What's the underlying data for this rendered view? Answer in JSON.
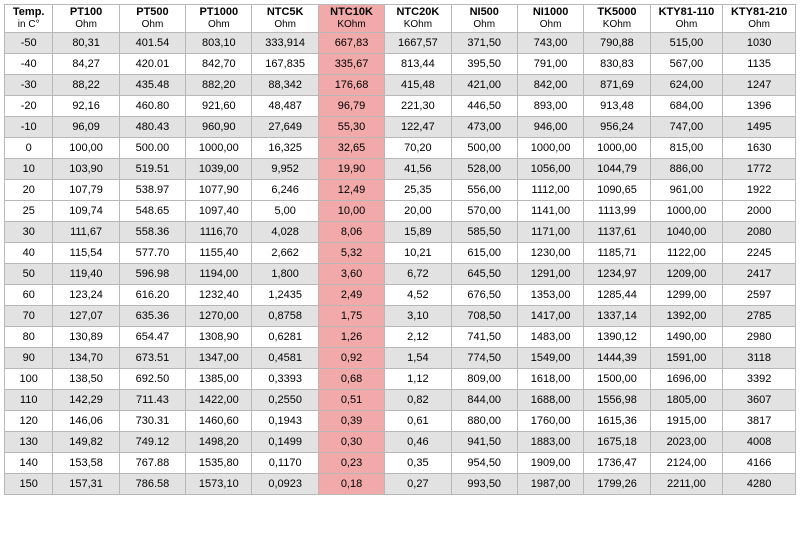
{
  "columns": [
    {
      "label": "Temp.",
      "unit": "in C°"
    },
    {
      "label": "PT100",
      "unit": "Ohm"
    },
    {
      "label": "PT500",
      "unit": "Ohm"
    },
    {
      "label": "PT1000",
      "unit": "Ohm"
    },
    {
      "label": "NTC5K",
      "unit": "Ohm"
    },
    {
      "label": "NTC10K",
      "unit": "KOhm"
    },
    {
      "label": "NTC20K",
      "unit": "KOhm"
    },
    {
      "label": "NI500",
      "unit": "Ohm"
    },
    {
      "label": "NI1000",
      "unit": "Ohm"
    },
    {
      "label": "TK5000",
      "unit": "KOhm"
    },
    {
      "label": "KTY81-110",
      "unit": "Ohm"
    },
    {
      "label": "KTY81-210",
      "unit": "Ohm"
    }
  ],
  "highlight_column_index": 5,
  "shaded_row_indices": [
    0,
    2,
    4,
    6,
    9,
    11,
    13,
    15,
    17,
    19,
    21
  ],
  "rows": [
    [
      "-50",
      "80,31",
      "401.54",
      "803,10",
      "333,914",
      "667,83",
      "1667,57",
      "371,50",
      "743,00",
      "790,88",
      "515,00",
      "1030"
    ],
    [
      "-40",
      "84,27",
      "420.01",
      "842,70",
      "167,835",
      "335,67",
      "813,44",
      "395,50",
      "791,00",
      "830,83",
      "567,00",
      "1135"
    ],
    [
      "-30",
      "88,22",
      "435.48",
      "882,20",
      "88,342",
      "176,68",
      "415,48",
      "421,00",
      "842,00",
      "871,69",
      "624,00",
      "1247"
    ],
    [
      "-20",
      "92,16",
      "460.80",
      "921,60",
      "48,487",
      "96,79",
      "221,30",
      "446,50",
      "893,00",
      "913,48",
      "684,00",
      "1396"
    ],
    [
      "-10",
      "96,09",
      "480.43",
      "960,90",
      "27,649",
      "55,30",
      "122,47",
      "473,00",
      "946,00",
      "956,24",
      "747,00",
      "1495"
    ],
    [
      "0",
      "100,00",
      "500.00",
      "1000,00",
      "16,325",
      "32,65",
      "70,20",
      "500,00",
      "1000,00",
      "1000,00",
      "815,00",
      "1630"
    ],
    [
      "10",
      "103,90",
      "519.51",
      "1039,00",
      "9,952",
      "19,90",
      "41,56",
      "528,00",
      "1056,00",
      "1044,79",
      "886,00",
      "1772"
    ],
    [
      "20",
      "107,79",
      "538.97",
      "1077,90",
      "6,246",
      "12,49",
      "25,35",
      "556,00",
      "1112,00",
      "1090,65",
      "961,00",
      "1922"
    ],
    [
      "25",
      "109,74",
      "548.65",
      "1097,40",
      "5,00",
      "10,00",
      "20,00",
      "570,00",
      "1141,00",
      "1113,99",
      "1000,00",
      "2000"
    ],
    [
      "30",
      "111,67",
      "558.36",
      "1116,70",
      "4,028",
      "8,06",
      "15,89",
      "585,50",
      "1171,00",
      "1137,61",
      "1040,00",
      "2080"
    ],
    [
      "40",
      "115,54",
      "577.70",
      "1155,40",
      "2,662",
      "5,32",
      "10,21",
      "615,00",
      "1230,00",
      "1185,71",
      "1122,00",
      "2245"
    ],
    [
      "50",
      "119,40",
      "596.98",
      "1194,00",
      "1,800",
      "3,60",
      "6,72",
      "645,50",
      "1291,00",
      "1234,97",
      "1209,00",
      "2417"
    ],
    [
      "60",
      "123,24",
      "616.20",
      "1232,40",
      "1,2435",
      "2,49",
      "4,52",
      "676,50",
      "1353,00",
      "1285,44",
      "1299,00",
      "2597"
    ],
    [
      "70",
      "127,07",
      "635.36",
      "1270,00",
      "0,8758",
      "1,75",
      "3,10",
      "708,50",
      "1417,00",
      "1337,14",
      "1392,00",
      "2785"
    ],
    [
      "80",
      "130,89",
      "654.47",
      "1308,90",
      "0,6281",
      "1,26",
      "2,12",
      "741,50",
      "1483,00",
      "1390,12",
      "1490,00",
      "2980"
    ],
    [
      "90",
      "134,70",
      "673.51",
      "1347,00",
      "0,4581",
      "0,92",
      "1,54",
      "774,50",
      "1549,00",
      "1444,39",
      "1591,00",
      "3118"
    ],
    [
      "100",
      "138,50",
      "692.50",
      "1385,00",
      "0,3393",
      "0,68",
      "1,12",
      "809,00",
      "1618,00",
      "1500,00",
      "1696,00",
      "3392"
    ],
    [
      "110",
      "142,29",
      "711.43",
      "1422,00",
      "0,2550",
      "0,51",
      "0,82",
      "844,00",
      "1688,00",
      "1556,98",
      "1805,00",
      "3607"
    ],
    [
      "120",
      "146,06",
      "730.31",
      "1460,60",
      "0,1943",
      "0,39",
      "0,61",
      "880,00",
      "1760,00",
      "1615,36",
      "1915,00",
      "3817"
    ],
    [
      "130",
      "149,82",
      "749.12",
      "1498,20",
      "0,1499",
      "0,30",
      "0,46",
      "941,50",
      "1883,00",
      "1675,18",
      "2023,00",
      "4008"
    ],
    [
      "140",
      "153,58",
      "767.88",
      "1535,80",
      "0,1170",
      "0,23",
      "0,35",
      "954,50",
      "1909,00",
      "1736,47",
      "2124,00",
      "4166"
    ],
    [
      "150",
      "157,31",
      "786.58",
      "1573,10",
      "0,0923",
      "0,18",
      "0,27",
      "993,50",
      "1987,00",
      "1799,26",
      "2211,00",
      "4280"
    ]
  ],
  "colors": {
    "border": "#b8b8b8",
    "shade": "#e2e2e2",
    "highlight": "#f2a9a9",
    "background": "#ffffff"
  }
}
